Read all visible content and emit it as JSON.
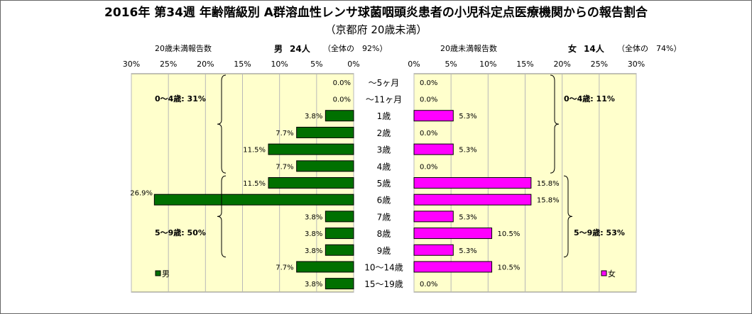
{
  "title": "2016年 第34週 年齢階級別 A群溶血性レンサ球菌咽頭炎患者の小児科定点医療機関からの報告割合",
  "subtitle": "（京都府 20歳未満）",
  "male_header": {
    "label": "20歳未満報告数",
    "sex": "男",
    "count": "24人",
    "share": "（全体の　92%）"
  },
  "female_header": {
    "label": "20歳未満報告数",
    "sex": "女",
    "count": "14人",
    "share": "（全体の　74%）"
  },
  "brackets": {
    "male_0_4": "0～4歳: 31%",
    "male_5_9": "5～9歳: 50%",
    "female_0_4": "0～4歳: 11%",
    "female_5_9": "5～9歳: 53%"
  },
  "colors": {
    "male": "#007000",
    "female": "#ff00ff",
    "plot_bg": "#ffffcc"
  },
  "chart_data": {
    "type": "bar",
    "orientation": "horizontal-butterfly",
    "categories": [
      "～5ヶ月",
      "～11ヶ月",
      "1歳",
      "2歳",
      "3歳",
      "4歳",
      "5歳",
      "6歳",
      "7歳",
      "8歳",
      "9歳",
      "10～14歳",
      "15～19歳"
    ],
    "series": [
      {
        "name": "男",
        "values": [
          0.0,
          0.0,
          3.8,
          7.7,
          11.5,
          7.7,
          11.5,
          26.9,
          3.8,
          3.8,
          3.8,
          7.7,
          3.8
        ],
        "labels": [
          "0.0%",
          "0.0%",
          "3.8%",
          "7.7%",
          "11.5%",
          "7.7%",
          "11.5%",
          "26.9%",
          "3.8%",
          "3.8%",
          "3.8%",
          "7.7%",
          "3.8%"
        ]
      },
      {
        "name": "女",
        "values": [
          0.0,
          0.0,
          5.3,
          0.0,
          5.3,
          0.0,
          15.8,
          15.8,
          5.3,
          10.5,
          5.3,
          10.5,
          0.0
        ],
        "labels": [
          "0.0%",
          "0.0%",
          "5.3%",
          "0.0%",
          "5.3%",
          "0.0%",
          "15.8%",
          "15.8%",
          "5.3%",
          "10.5%",
          "5.3%",
          "10.5%",
          "0.0%"
        ]
      }
    ],
    "male_ticks": [
      "30%",
      "25%",
      "20%",
      "15%",
      "10%",
      "5%",
      "0%"
    ],
    "female_ticks": [
      "0%",
      "5%",
      "10%",
      "15%",
      "20%",
      "25%",
      "30%"
    ],
    "xlim": [
      0,
      30
    ],
    "grid": true,
    "legend_position": "bottom-corners"
  }
}
